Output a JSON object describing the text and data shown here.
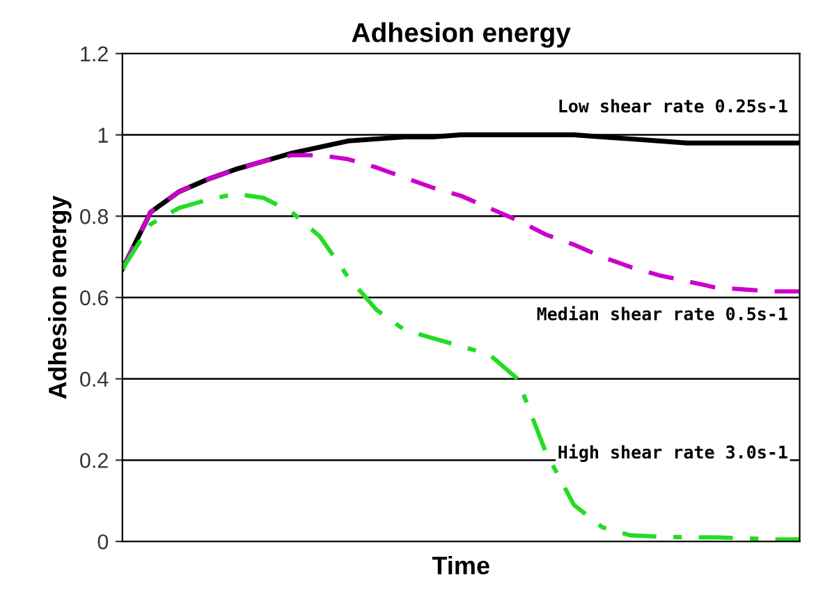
{
  "chart_data": {
    "type": "line",
    "title": "Adhesion energy",
    "xlabel": "Time",
    "ylabel": "Adhesion energy",
    "categories": [
      null,
      null,
      null,
      null,
      null,
      null,
      null,
      null,
      null,
      null,
      null,
      null,
      null,
      null,
      null,
      null,
      null,
      null,
      null,
      null,
      null,
      null,
      null,
      null,
      null
    ],
    "series": [
      {
        "name": "Low shear rate 0.25s-1",
        "color": "#000000",
        "line_style": "solid",
        "values": [
          0.67,
          0.81,
          0.86,
          0.89,
          0.915,
          0.935,
          0.955,
          0.97,
          0.985,
          0.99,
          0.995,
          0.995,
          1.0,
          1.0,
          1.0,
          1.0,
          1.0,
          0.995,
          0.99,
          0.985,
          0.98,
          0.98,
          0.98,
          0.98,
          0.98
        ]
      },
      {
        "name": "Median shear rate 0.5s-1",
        "color": "#cc00cc",
        "line_style": "dashed",
        "values": [
          0.67,
          0.81,
          0.86,
          0.89,
          0.915,
          0.935,
          0.95,
          0.95,
          0.94,
          0.92,
          0.895,
          0.87,
          0.85,
          0.82,
          0.79,
          0.755,
          0.73,
          0.7,
          0.675,
          0.655,
          0.64,
          0.625,
          0.62,
          0.615,
          0.615
        ]
      },
      {
        "name": "High shear rate 3.0s-1",
        "color": "#22dd22",
        "line_style": "dashdot",
        "values": [
          0.67,
          0.78,
          0.82,
          0.84,
          0.855,
          0.845,
          0.81,
          0.75,
          0.65,
          0.57,
          0.52,
          0.5,
          0.48,
          0.46,
          0.4,
          0.22,
          0.09,
          0.035,
          0.015,
          0.012,
          0.01,
          0.01,
          0.008,
          0.005,
          0.005
        ]
      }
    ],
    "ylim": [
      0,
      1.2
    ],
    "yticks": [
      0,
      0.2,
      0.4,
      0.6,
      0.8,
      1,
      1.2
    ],
    "grid": "y",
    "legend": false
  }
}
